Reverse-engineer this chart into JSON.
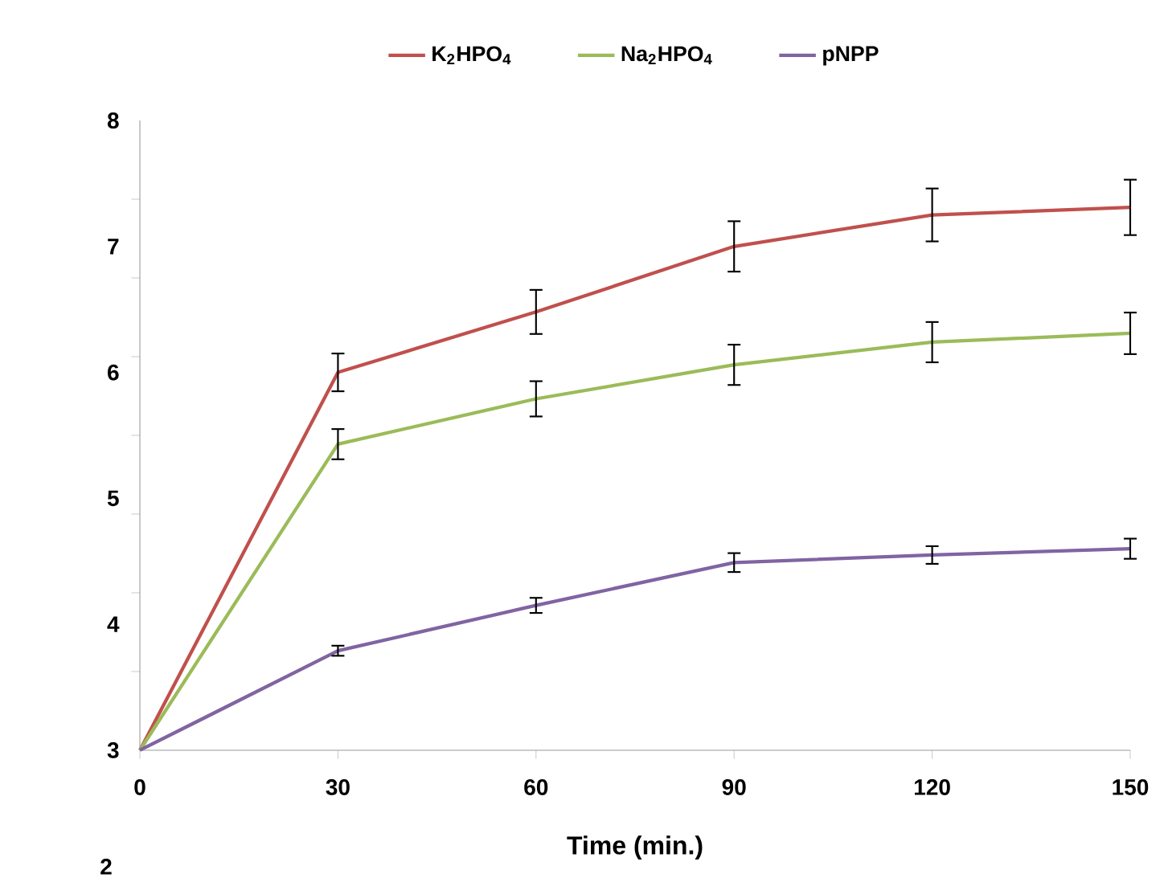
{
  "chart_data": {
    "type": "line",
    "xlabel": "Time (min.)",
    "x": [
      0,
      30,
      60,
      90,
      120,
      150
    ],
    "series": [
      {
        "name": "K$_{2}$HPO$_{4}$",
        "color": "#c0504d",
        "values": [
          3,
          6.0,
          6.48,
          7.0,
          7.25,
          7.31
        ],
        "errors": [
          null,
          0.15,
          0.175,
          0.2,
          0.21,
          0.22
        ]
      },
      {
        "name": "Na$_{2}$HPO$_{4}$",
        "color": "#9bbb59",
        "values": [
          3,
          5.43,
          5.79,
          6.06,
          6.24,
          6.31
        ],
        "errors": [
          null,
          0.12,
          0.14,
          0.16,
          0.16,
          0.165
        ]
      },
      {
        "name": "pNPP",
        "color": "#8064a2",
        "values": [
          3,
          3.79,
          4.15,
          4.49,
          4.55,
          4.6
        ],
        "errors": [
          null,
          0.04,
          0.06,
          0.075,
          0.07,
          0.08
        ]
      }
    ],
    "xlim": [
      0,
      150
    ],
    "xticks": [
      0,
      30,
      60,
      90,
      120,
      150
    ],
    "ylim": [
      3,
      8
    ],
    "yticks": [
      3,
      4,
      5,
      6,
      7,
      8,
      {
        "value": 3.625,
        "label": null
      },
      {
        "value": 4.25,
        "label": null
      },
      {
        "value": 4.875,
        "label": null
      },
      {
        "value": 5.5,
        "label": null
      },
      {
        "value": 6.125,
        "label": null
      },
      {
        "value": 6.75,
        "label": null
      },
      {
        "value": 7.375,
        "label": null
      }
    ],
    "annotations": [
      "2"
    ],
    "legend": "top",
    "grid": false,
    "marker": "none",
    "line_style": "solid"
  }
}
